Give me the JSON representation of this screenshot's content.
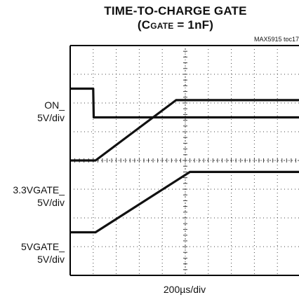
{
  "chart_data": {
    "type": "line",
    "title_line1": "TIME-TO-CHARGE GATE",
    "title_line2_open": "(C",
    "title_line2_sub": "GATE",
    "title_line2_rest": " = 1nF)",
    "code": "MAX5915 toc17",
    "x_unit": "200µs/div",
    "grid": true,
    "x_divisions": 10,
    "y_divisions": 8,
    "trace_color": "#111111",
    "series": [
      {
        "name_line1": "ON_",
        "name_line2": "5V/div",
        "points": [
          [
            0,
            1.5
          ],
          [
            1,
            1.5
          ],
          [
            1.02,
            2.5
          ],
          [
            10,
            2.5
          ]
        ]
      },
      {
        "name_line1": "3.3VGATE_",
        "name_line2": "5V/div",
        "points": [
          [
            0,
            4.0
          ],
          [
            1.1,
            4.0
          ],
          [
            4.6,
            1.9
          ],
          [
            10,
            1.9
          ]
        ]
      },
      {
        "name_line1": "5VGATE_",
        "name_line2": "5V/div",
        "points": [
          [
            0,
            6.5
          ],
          [
            1.1,
            6.5
          ],
          [
            5.2,
            4.4
          ],
          [
            10,
            4.4
          ]
        ]
      }
    ]
  }
}
